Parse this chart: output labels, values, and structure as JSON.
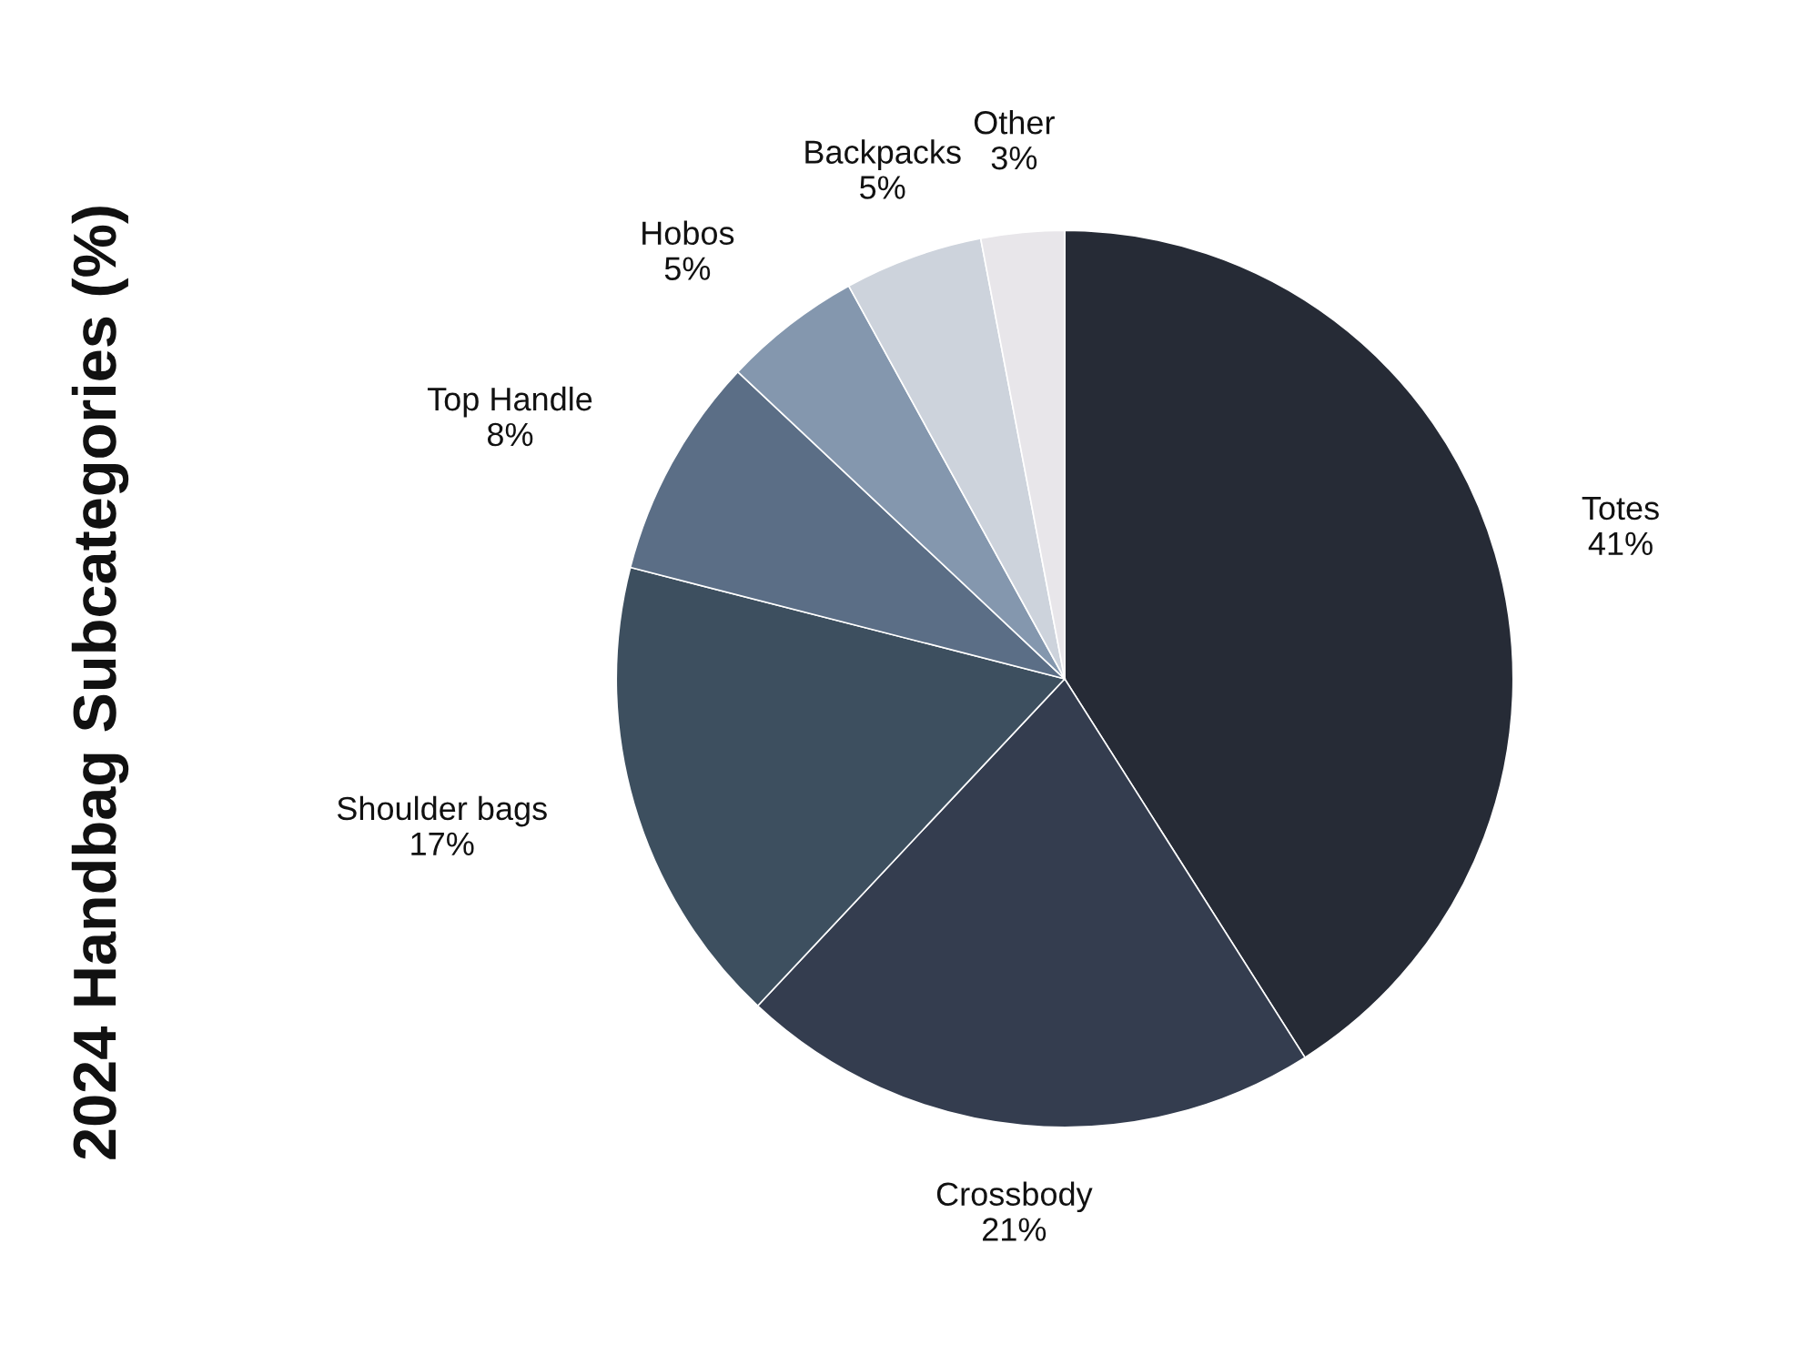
{
  "chart_data": {
    "type": "pie",
    "title": "2024 Handbag Subcategories (%)",
    "categories": [
      "Totes",
      "Crossbody",
      "Shoulder bags",
      "Top Handle",
      "Hobos",
      "Backpacks",
      "Other"
    ],
    "values": [
      41,
      21,
      17,
      8,
      5,
      5,
      3
    ],
    "value_labels": [
      "41%",
      "21%",
      "17%",
      "8%",
      "5%",
      "5%",
      "3%"
    ],
    "colors": [
      "#262b36",
      "#343d4f",
      "#3d4f5f",
      "#5b6e86",
      "#8497ae",
      "#cdd3dc",
      "#e8e6ea"
    ]
  }
}
